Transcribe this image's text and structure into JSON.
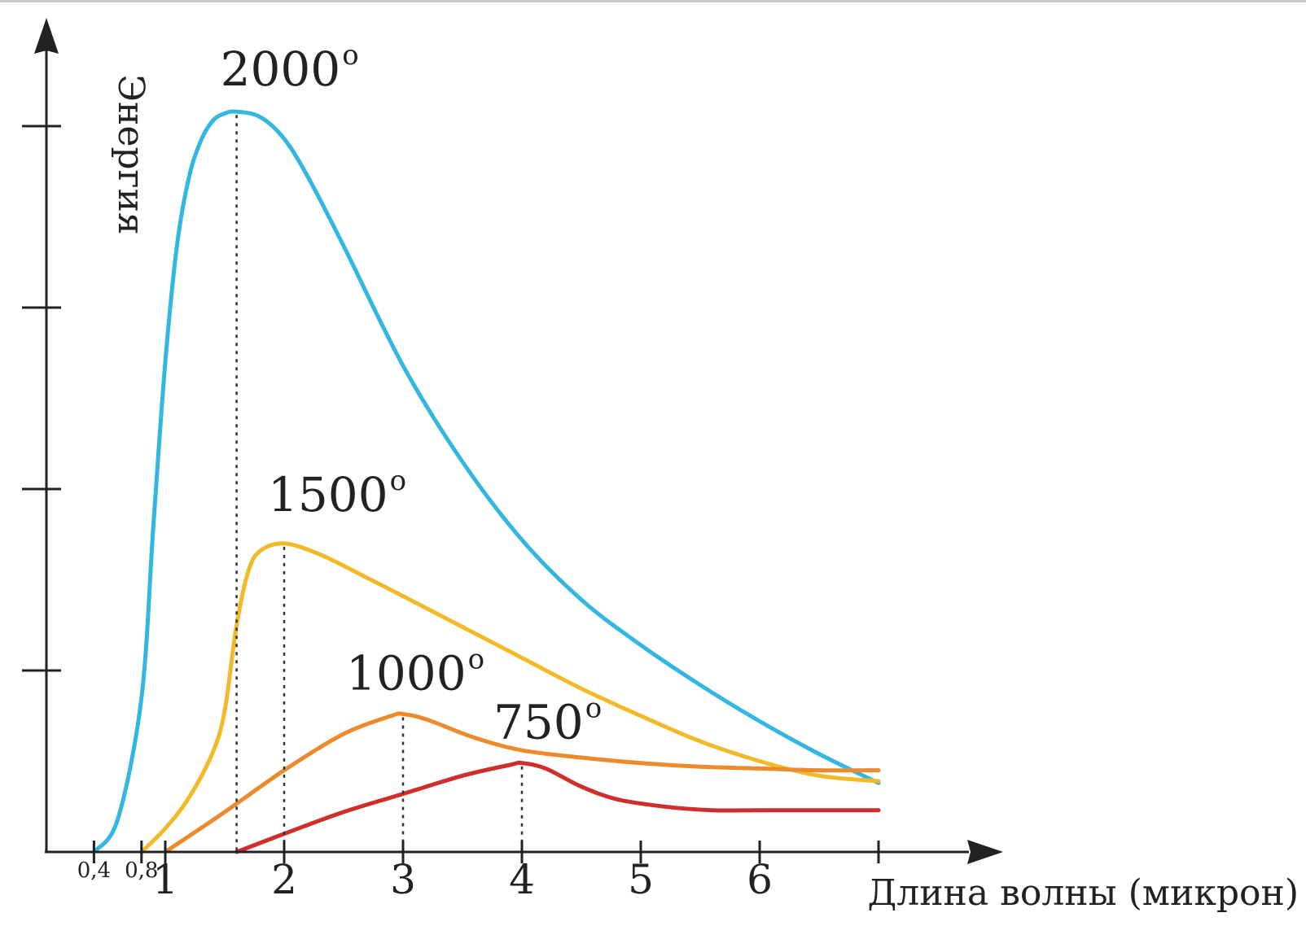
{
  "chart_data": {
    "type": "line",
    "xlabel": "Длина волны (микрон)",
    "ylabel": "Энергия",
    "xlim": [
      0.4,
      7.0
    ],
    "ylim": [
      0,
      4.2
    ],
    "x_ticks": [
      {
        "value": 0.4,
        "label": "0,4",
        "size": "small"
      },
      {
        "value": 0.8,
        "label": "0,8",
        "size": "small"
      },
      {
        "value": 1,
        "label": "1",
        "size": "big"
      },
      {
        "value": 2,
        "label": "2",
        "size": "big"
      },
      {
        "value": 3,
        "label": "3",
        "size": "big"
      },
      {
        "value": 4,
        "label": "4",
        "size": "big"
      },
      {
        "value": 5,
        "label": "5",
        "size": "big"
      },
      {
        "value": 6,
        "label": "6",
        "size": "big"
      },
      {
        "value": 7,
        "label": "",
        "size": "big"
      }
    ],
    "y_ticks": [
      1,
      2,
      3,
      4
    ],
    "series": [
      {
        "name": "2000",
        "label_suffix": "o",
        "color": "#33b6e0",
        "peak_x": 1.6,
        "points": [
          [
            0.4,
            0
          ],
          [
            0.6,
            0.18
          ],
          [
            0.8,
            0.85
          ],
          [
            0.9,
            1.8
          ],
          [
            1.0,
            2.7
          ],
          [
            1.1,
            3.35
          ],
          [
            1.2,
            3.72
          ],
          [
            1.3,
            3.92
          ],
          [
            1.4,
            4.03
          ],
          [
            1.5,
            4.07
          ],
          [
            1.6,
            4.08
          ],
          [
            1.8,
            4.05
          ],
          [
            2.0,
            3.93
          ],
          [
            2.2,
            3.72
          ],
          [
            2.5,
            3.34
          ],
          [
            3.0,
            2.68
          ],
          [
            3.5,
            2.15
          ],
          [
            4.0,
            1.72
          ],
          [
            4.5,
            1.39
          ],
          [
            5.0,
            1.14
          ],
          [
            5.5,
            0.92
          ],
          [
            6.0,
            0.72
          ],
          [
            6.5,
            0.54
          ],
          [
            7.0,
            0.38
          ]
        ]
      },
      {
        "name": "1500",
        "label_suffix": "o",
        "color": "#f2b928",
        "peak_x": 2.0,
        "points": [
          [
            0.8,
            0
          ],
          [
            1.0,
            0.13
          ],
          [
            1.2,
            0.3
          ],
          [
            1.4,
            0.55
          ],
          [
            1.5,
            0.78
          ],
          [
            1.6,
            1.25
          ],
          [
            1.7,
            1.55
          ],
          [
            1.8,
            1.66
          ],
          [
            2.0,
            1.7
          ],
          [
            2.3,
            1.64
          ],
          [
            2.7,
            1.51
          ],
          [
            3.0,
            1.41
          ],
          [
            3.5,
            1.24
          ],
          [
            4.0,
            1.07
          ],
          [
            4.5,
            0.9
          ],
          [
            5.0,
            0.75
          ],
          [
            5.5,
            0.61
          ],
          [
            6.0,
            0.5
          ],
          [
            6.5,
            0.42
          ],
          [
            7.0,
            0.39
          ]
        ]
      },
      {
        "name": "1000",
        "label_suffix": "o",
        "color": "#ec8a2c",
        "peak_x": 3.0,
        "points": [
          [
            1.0,
            0
          ],
          [
            1.5,
            0.22
          ],
          [
            2.0,
            0.45
          ],
          [
            2.5,
            0.65
          ],
          [
            2.9,
            0.75
          ],
          [
            3.0,
            0.76
          ],
          [
            3.2,
            0.73
          ],
          [
            3.6,
            0.63
          ],
          [
            4.0,
            0.56
          ],
          [
            4.5,
            0.52
          ],
          [
            5.0,
            0.49
          ],
          [
            5.5,
            0.47
          ],
          [
            6.0,
            0.46
          ],
          [
            6.5,
            0.45
          ],
          [
            7.0,
            0.45
          ]
        ]
      },
      {
        "name": "750",
        "label_suffix": "o",
        "color": "#d02e2a",
        "peak_x": 4.0,
        "points": [
          [
            1.6,
            0
          ],
          [
            2.0,
            0.1
          ],
          [
            2.5,
            0.22
          ],
          [
            3.0,
            0.32
          ],
          [
            3.5,
            0.42
          ],
          [
            3.9,
            0.48
          ],
          [
            4.0,
            0.49
          ],
          [
            4.2,
            0.46
          ],
          [
            4.5,
            0.36
          ],
          [
            4.8,
            0.29
          ],
          [
            5.2,
            0.25
          ],
          [
            5.6,
            0.23
          ],
          [
            6.0,
            0.23
          ],
          [
            6.5,
            0.23
          ],
          [
            7.0,
            0.23
          ]
        ]
      }
    ]
  }
}
